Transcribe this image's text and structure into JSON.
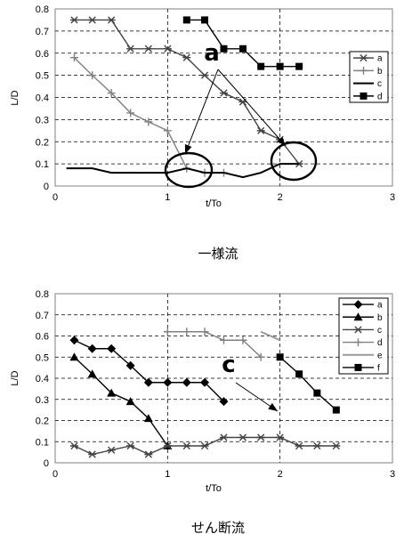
{
  "chart_data": [
    {
      "type": "line",
      "caption": "一様流",
      "xlabel": "t/To",
      "ylabel": "L/D",
      "xlim": [
        0,
        3
      ],
      "ylim": [
        0,
        0.8
      ],
      "xticks": [
        0,
        1,
        2,
        3
      ],
      "yticks": [
        0,
        0.1,
        0.2,
        0.3,
        0.4,
        0.5,
        0.6,
        0.7,
        0.8
      ],
      "grid": "dashed horizontal, dashed vertical at t/To 1 and 2",
      "legend_placement": "right",
      "annotation": "a",
      "series": [
        {
          "name": "a",
          "marker": "asterisk",
          "color": "#444444",
          "x": [
            0.17,
            0.33,
            0.5,
            0.67,
            0.83,
            1.0,
            1.17,
            1.33,
            1.5,
            1.67,
            1.83,
            2.0,
            2.17
          ],
          "y": [
            0.75,
            0.75,
            0.75,
            0.62,
            0.62,
            0.62,
            0.58,
            0.5,
            0.42,
            0.38,
            0.25,
            0.21,
            0.1
          ]
        },
        {
          "name": "b",
          "marker": "plus",
          "color": "#808080",
          "x": [
            0.17,
            0.33,
            0.5,
            0.67,
            0.83,
            1.0,
            1.17,
            1.33,
            1.5
          ],
          "y": [
            0.58,
            0.5,
            0.42,
            0.33,
            0.29,
            0.25,
            0.08,
            0.06,
            0.06
          ]
        },
        {
          "name": "c",
          "marker": "none",
          "color": "#000000",
          "x": [
            0.1,
            0.33,
            0.5,
            0.67,
            0.83,
            1.0,
            1.17,
            1.33,
            1.5,
            1.67,
            1.83,
            2.0,
            2.17
          ],
          "y": [
            0.08,
            0.08,
            0.06,
            0.06,
            0.06,
            0.06,
            0.08,
            0.06,
            0.06,
            0.04,
            0.06,
            0.1,
            0.1
          ]
        },
        {
          "name": "d",
          "marker": "square",
          "color": "#000000",
          "x": [
            1.17,
            1.33,
            1.5,
            1.67,
            1.83,
            2.0,
            2.17
          ],
          "y": [
            0.75,
            0.75,
            0.62,
            0.62,
            0.54,
            0.54,
            0.54
          ]
        }
      ]
    },
    {
      "type": "line",
      "caption": "せん断流",
      "xlabel": "t/To",
      "ylabel": "L/D",
      "xlim": [
        0,
        3
      ],
      "ylim": [
        0,
        0.8
      ],
      "xticks": [
        0,
        1,
        2,
        3
      ],
      "yticks": [
        0,
        0.1,
        0.2,
        0.3,
        0.4,
        0.5,
        0.6,
        0.7,
        0.8
      ],
      "grid": "dashed horizontal, dashed vertical at t/To 1 and 2",
      "legend_placement": "top-right",
      "annotation": "c",
      "series": [
        {
          "name": "a",
          "marker": "diamond",
          "color": "#000000",
          "x": [
            0.17,
            0.33,
            0.5,
            0.67,
            0.83,
            1.0,
            1.17,
            1.33,
            1.5
          ],
          "y": [
            0.58,
            0.54,
            0.54,
            0.46,
            0.38,
            0.38,
            0.38,
            0.38,
            0.29
          ]
        },
        {
          "name": "b",
          "marker": "triangle",
          "color": "#000000",
          "x": [
            0.17,
            0.33,
            0.5,
            0.67,
            0.83,
            1.0
          ],
          "y": [
            0.5,
            0.42,
            0.33,
            0.29,
            0.21,
            0.08
          ]
        },
        {
          "name": "c",
          "marker": "asterisk",
          "color": "#444444",
          "x": [
            0.17,
            0.33,
            0.5,
            0.67,
            0.83,
            1.0,
            1.17,
            1.33,
            1.5,
            1.67,
            1.83,
            2.0,
            2.17,
            2.33,
            2.5
          ],
          "y": [
            0.08,
            0.04,
            0.06,
            0.08,
            0.04,
            0.08,
            0.08,
            0.08,
            0.12,
            0.12,
            0.12,
            0.12,
            0.08,
            0.08,
            0.08
          ]
        },
        {
          "name": "d",
          "marker": "plus",
          "color": "#808080",
          "x": [
            1.0,
            1.17,
            1.33,
            1.5,
            1.67,
            1.83
          ],
          "y": [
            0.62,
            0.62,
            0.62,
            0.58,
            0.58,
            0.5
          ]
        },
        {
          "name": "e",
          "marker": "none",
          "color": "#999999",
          "x": [
            1.83,
            2.0
          ],
          "y": [
            0.62,
            0.58
          ]
        },
        {
          "name": "f",
          "marker": "square",
          "color": "#000000",
          "x": [
            2.0,
            2.17,
            2.33,
            2.5
          ],
          "y": [
            0.5,
            0.42,
            0.33,
            0.25
          ]
        }
      ]
    }
  ]
}
